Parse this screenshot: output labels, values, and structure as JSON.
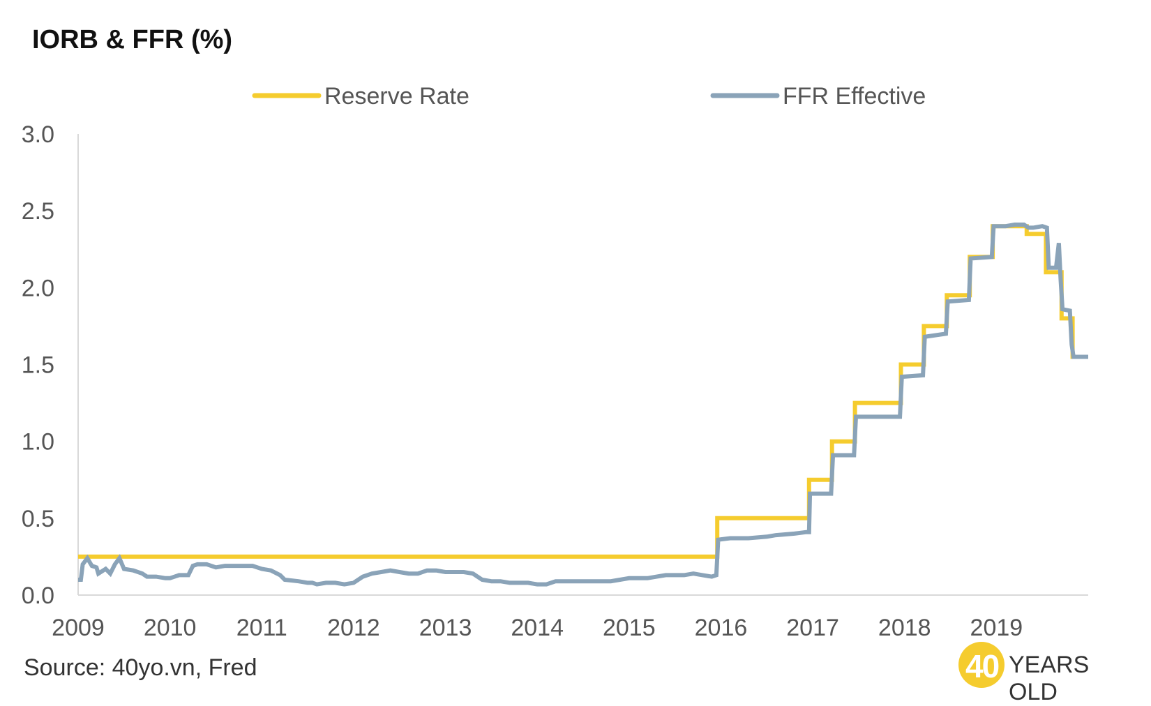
{
  "chart_data": {
    "type": "line",
    "title": "IORB & FFR (%)",
    "xlabel": "",
    "ylabel": "",
    "xlim": [
      2009,
      2020
    ],
    "ylim": [
      0,
      3
    ],
    "x_ticks": [
      "2009",
      "2010",
      "2011",
      "2012",
      "2013",
      "2014",
      "2015",
      "2016",
      "2017",
      "2018",
      "2019"
    ],
    "y_ticks": [
      "0.0",
      "0.5",
      "1.0",
      "1.5",
      "2.0",
      "2.5",
      "3.0"
    ],
    "grid": false,
    "legend_position": "top",
    "series": [
      {
        "name": "Reserve Rate",
        "color": "#f5cc2e",
        "style": "step",
        "points": [
          [
            2009.0,
            0.25
          ],
          [
            2015.96,
            0.25
          ],
          [
            2015.96,
            0.5
          ],
          [
            2016.96,
            0.5
          ],
          [
            2016.96,
            0.75
          ],
          [
            2017.21,
            0.75
          ],
          [
            2017.21,
            1.0
          ],
          [
            2017.46,
            1.0
          ],
          [
            2017.46,
            1.25
          ],
          [
            2017.96,
            1.25
          ],
          [
            2017.96,
            1.5
          ],
          [
            2018.21,
            1.5
          ],
          [
            2018.21,
            1.75
          ],
          [
            2018.46,
            1.75
          ],
          [
            2018.46,
            1.95
          ],
          [
            2018.71,
            1.95
          ],
          [
            2018.71,
            2.2
          ],
          [
            2018.96,
            2.2
          ],
          [
            2018.96,
            2.4
          ],
          [
            2019.33,
            2.4
          ],
          [
            2019.33,
            2.35
          ],
          [
            2019.54,
            2.35
          ],
          [
            2019.54,
            2.1
          ],
          [
            2019.71,
            2.1
          ],
          [
            2019.71,
            1.8
          ],
          [
            2019.83,
            1.8
          ],
          [
            2019.83,
            1.55
          ],
          [
            2020.0,
            1.55
          ]
        ]
      },
      {
        "name": "FFR Effective",
        "color": "#8aa3b8",
        "style": "line",
        "points": [
          [
            2009.0,
            0.1
          ],
          [
            2009.03,
            0.1
          ],
          [
            2009.05,
            0.2
          ],
          [
            2009.1,
            0.24
          ],
          [
            2009.15,
            0.19
          ],
          [
            2009.2,
            0.18
          ],
          [
            2009.22,
            0.14
          ],
          [
            2009.3,
            0.17
          ],
          [
            2009.35,
            0.14
          ],
          [
            2009.4,
            0.2
          ],
          [
            2009.45,
            0.24
          ],
          [
            2009.5,
            0.17
          ],
          [
            2009.6,
            0.16
          ],
          [
            2009.7,
            0.14
          ],
          [
            2009.75,
            0.12
          ],
          [
            2009.85,
            0.12
          ],
          [
            2009.95,
            0.11
          ],
          [
            2010.0,
            0.11
          ],
          [
            2010.1,
            0.13
          ],
          [
            2010.2,
            0.13
          ],
          [
            2010.25,
            0.19
          ],
          [
            2010.3,
            0.2
          ],
          [
            2010.4,
            0.2
          ],
          [
            2010.5,
            0.18
          ],
          [
            2010.6,
            0.19
          ],
          [
            2010.7,
            0.19
          ],
          [
            2010.8,
            0.19
          ],
          [
            2010.9,
            0.19
          ],
          [
            2011.0,
            0.17
          ],
          [
            2011.1,
            0.16
          ],
          [
            2011.2,
            0.13
          ],
          [
            2011.25,
            0.1
          ],
          [
            2011.4,
            0.09
          ],
          [
            2011.5,
            0.08
          ],
          [
            2011.55,
            0.08
          ],
          [
            2011.6,
            0.07
          ],
          [
            2011.7,
            0.08
          ],
          [
            2011.8,
            0.08
          ],
          [
            2011.9,
            0.07
          ],
          [
            2012.0,
            0.08
          ],
          [
            2012.05,
            0.1
          ],
          [
            2012.1,
            0.12
          ],
          [
            2012.2,
            0.14
          ],
          [
            2012.3,
            0.15
          ],
          [
            2012.4,
            0.16
          ],
          [
            2012.5,
            0.15
          ],
          [
            2012.6,
            0.14
          ],
          [
            2012.7,
            0.14
          ],
          [
            2012.8,
            0.16
          ],
          [
            2012.9,
            0.16
          ],
          [
            2013.0,
            0.15
          ],
          [
            2013.1,
            0.15
          ],
          [
            2013.2,
            0.15
          ],
          [
            2013.3,
            0.14
          ],
          [
            2013.4,
            0.1
          ],
          [
            2013.5,
            0.09
          ],
          [
            2013.6,
            0.09
          ],
          [
            2013.7,
            0.08
          ],
          [
            2013.8,
            0.08
          ],
          [
            2013.9,
            0.08
          ],
          [
            2014.0,
            0.07
          ],
          [
            2014.1,
            0.07
          ],
          [
            2014.2,
            0.09
          ],
          [
            2014.3,
            0.09
          ],
          [
            2014.4,
            0.09
          ],
          [
            2014.5,
            0.09
          ],
          [
            2014.6,
            0.09
          ],
          [
            2014.7,
            0.09
          ],
          [
            2014.8,
            0.09
          ],
          [
            2014.9,
            0.1
          ],
          [
            2015.0,
            0.11
          ],
          [
            2015.1,
            0.11
          ],
          [
            2015.2,
            0.11
          ],
          [
            2015.3,
            0.12
          ],
          [
            2015.4,
            0.13
          ],
          [
            2015.5,
            0.13
          ],
          [
            2015.6,
            0.13
          ],
          [
            2015.7,
            0.14
          ],
          [
            2015.8,
            0.13
          ],
          [
            2015.9,
            0.12
          ],
          [
            2015.95,
            0.13
          ],
          [
            2015.97,
            0.36
          ],
          [
            2016.1,
            0.37
          ],
          [
            2016.3,
            0.37
          ],
          [
            2016.5,
            0.38
          ],
          [
            2016.6,
            0.39
          ],
          [
            2016.8,
            0.4
          ],
          [
            2016.93,
            0.41
          ],
          [
            2016.96,
            0.41
          ],
          [
            2016.97,
            0.66
          ],
          [
            2017.2,
            0.66
          ],
          [
            2017.22,
            0.91
          ],
          [
            2017.45,
            0.91
          ],
          [
            2017.47,
            1.16
          ],
          [
            2017.95,
            1.16
          ],
          [
            2017.97,
            1.42
          ],
          [
            2018.2,
            1.43
          ],
          [
            2018.22,
            1.68
          ],
          [
            2018.45,
            1.7
          ],
          [
            2018.47,
            1.91
          ],
          [
            2018.7,
            1.92
          ],
          [
            2018.72,
            2.19
          ],
          [
            2018.95,
            2.2
          ],
          [
            2018.97,
            2.4
          ],
          [
            2019.1,
            2.4
          ],
          [
            2019.2,
            2.41
          ],
          [
            2019.3,
            2.41
          ],
          [
            2019.35,
            2.39
          ],
          [
            2019.4,
            2.39
          ],
          [
            2019.5,
            2.4
          ],
          [
            2019.55,
            2.39
          ],
          [
            2019.57,
            2.13
          ],
          [
            2019.65,
            2.13
          ],
          [
            2019.68,
            2.29
          ],
          [
            2019.7,
            2.05
          ],
          [
            2019.72,
            1.86
          ],
          [
            2019.8,
            1.85
          ],
          [
            2019.82,
            1.63
          ],
          [
            2019.84,
            1.55
          ],
          [
            2019.9,
            1.55
          ],
          [
            2020.0,
            1.55
          ]
        ]
      }
    ]
  },
  "source_text": "Source: 40yo.vn, Fred",
  "brand": {
    "number": "40",
    "text": "YEARS OLD",
    "color": "#f5cc2e"
  }
}
